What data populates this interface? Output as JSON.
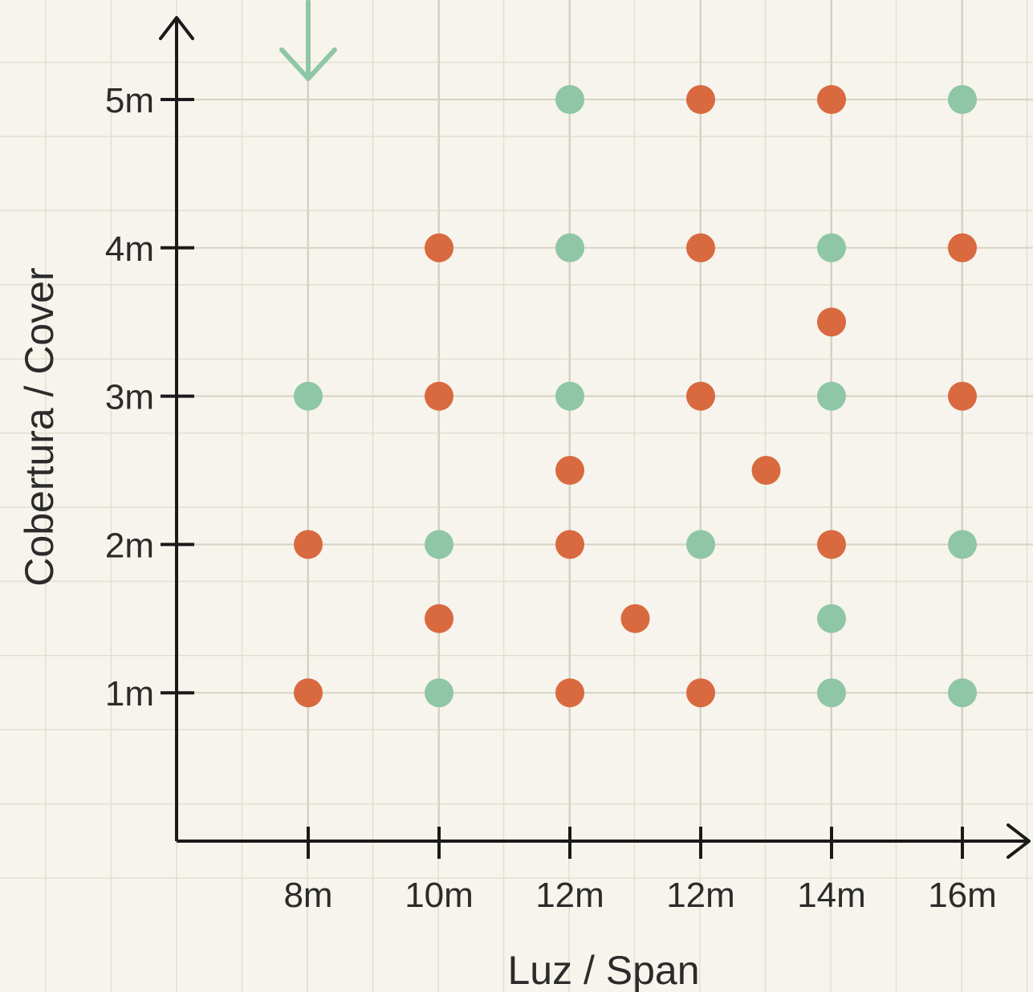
{
  "chart_data": {
    "type": "scatter",
    "title": "",
    "xlabel": "Luz / Span",
    "ylabel": "Cobertura / Cover",
    "x_ticks": [
      "8m",
      "10m",
      "12m",
      "12m",
      "14m",
      "16m"
    ],
    "y_ticks": [
      "1m",
      "2m",
      "3m",
      "4m",
      "5m"
    ],
    "y_tick_values": [
      1,
      2,
      3,
      4,
      5
    ],
    "ylim": [
      0,
      5.5
    ],
    "grid": true,
    "legend": "none",
    "colors": {
      "green": "#8fc6a6",
      "orange": "#d9693f",
      "axis": "#1a1a1a",
      "grid": "#e2dfd2"
    },
    "series": [
      {
        "color": "green",
        "points": [
          {
            "x": 3,
            "y": 5
          },
          {
            "x": 6,
            "y": 5
          },
          {
            "x": 3,
            "y": 4
          },
          {
            "x": 5,
            "y": 4
          },
          {
            "x": 1,
            "y": 3
          },
          {
            "x": 3,
            "y": 3
          },
          {
            "x": 5,
            "y": 3
          },
          {
            "x": 2,
            "y": 2
          },
          {
            "x": 4,
            "y": 2
          },
          {
            "x": 6,
            "y": 2
          },
          {
            "x": 5,
            "y": 1.5
          },
          {
            "x": 2,
            "y": 1
          },
          {
            "x": 5,
            "y": 1
          },
          {
            "x": 6,
            "y": 1
          }
        ]
      },
      {
        "color": "orange",
        "points": [
          {
            "x": 4,
            "y": 5
          },
          {
            "x": 5,
            "y": 5
          },
          {
            "x": 2,
            "y": 4
          },
          {
            "x": 4,
            "y": 4
          },
          {
            "x": 6,
            "y": 4
          },
          {
            "x": 5,
            "y": 3.5
          },
          {
            "x": 2,
            "y": 3
          },
          {
            "x": 4,
            "y": 3
          },
          {
            "x": 6,
            "y": 3
          },
          {
            "x": 3,
            "y": 2.5
          },
          {
            "x": 4.5,
            "y": 2.5
          },
          {
            "x": 1,
            "y": 2
          },
          {
            "x": 3,
            "y": 2
          },
          {
            "x": 5,
            "y": 2
          },
          {
            "x": 2,
            "y": 1.5
          },
          {
            "x": 3.5,
            "y": 1.5
          },
          {
            "x": 1,
            "y": 1
          },
          {
            "x": 3,
            "y": 1
          },
          {
            "x": 4,
            "y": 1
          }
        ]
      }
    ]
  }
}
